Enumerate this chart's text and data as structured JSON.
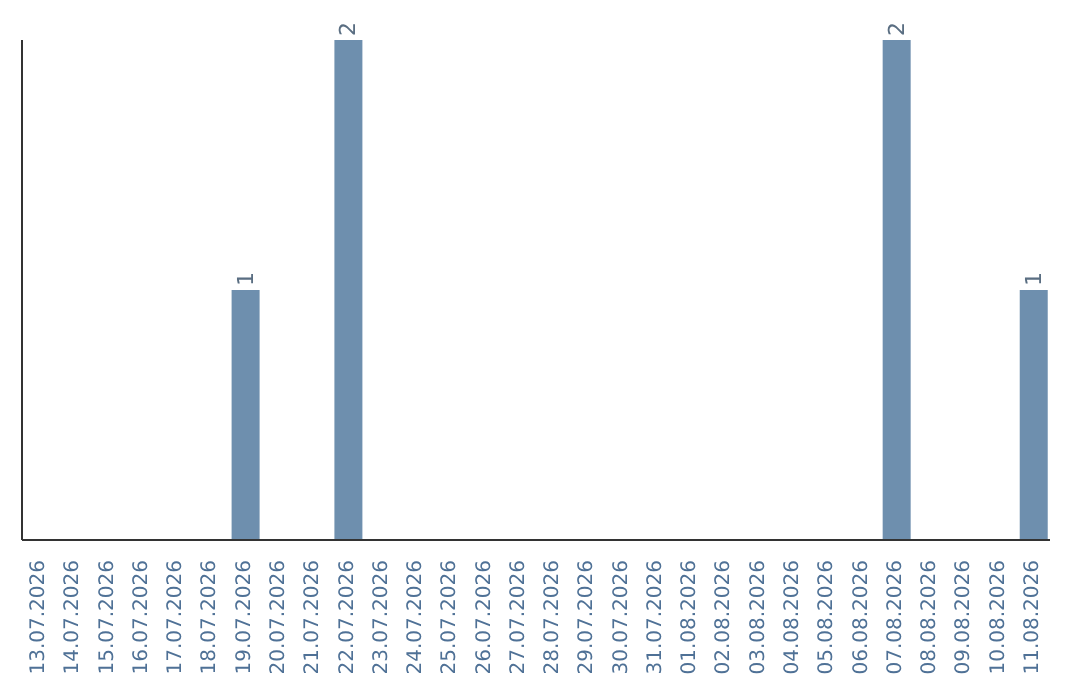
{
  "chart_data": {
    "type": "bar",
    "categories": [
      "13.07.2026",
      "14.07.2026",
      "15.07.2026",
      "16.07.2026",
      "17.07.2026",
      "18.07.2026",
      "19.07.2026",
      "20.07.2026",
      "21.07.2026",
      "22.07.2026",
      "23.07.2026",
      "24.07.2026",
      "25.07.2026",
      "26.07.2026",
      "27.07.2026",
      "28.07.2026",
      "29.07.2026",
      "30.07.2026",
      "31.07.2026",
      "01.08.2026",
      "02.08.2026",
      "03.08.2026",
      "04.08.2026",
      "05.08.2026",
      "06.08.2026",
      "07.08.2026",
      "08.08.2026",
      "09.08.2026",
      "10.08.2026",
      "11.08.2026"
    ],
    "values": [
      0,
      0,
      0,
      0,
      0,
      0,
      1,
      0,
      0,
      2,
      0,
      0,
      0,
      0,
      0,
      0,
      0,
      0,
      0,
      0,
      0,
      0,
      0,
      0,
      0,
      2,
      0,
      0,
      0,
      1
    ],
    "value_labels": [
      null,
      null,
      null,
      null,
      null,
      null,
      "1",
      null,
      null,
      "2",
      null,
      null,
      null,
      null,
      null,
      null,
      null,
      null,
      null,
      null,
      null,
      null,
      null,
      null,
      null,
      "2",
      null,
      null,
      null,
      "1"
    ],
    "color": "#6e8fae",
    "tick_labels": "x",
    "grid": false,
    "legend": false
  }
}
